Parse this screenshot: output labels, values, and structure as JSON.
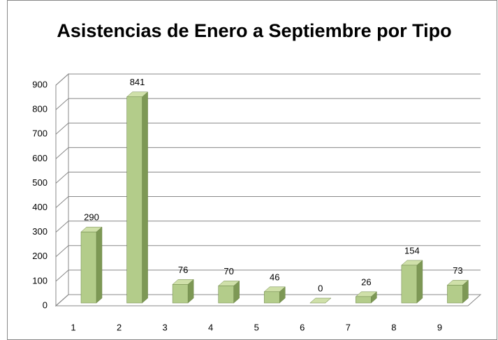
{
  "chart_data": {
    "type": "bar",
    "title": "Asistencias  de Enero a Septiembre  por Tipo",
    "categories": [
      "1",
      "2",
      "3",
      "4",
      "5",
      "6",
      "7",
      "8",
      "9"
    ],
    "values": [
      290,
      841,
      76,
      70,
      46,
      0,
      26,
      154,
      73
    ],
    "color": "#b3cc8a",
    "ylim": [
      0,
      900
    ],
    "yticks": [
      0,
      100,
      200,
      300,
      400,
      500,
      600,
      700,
      800,
      900
    ],
    "grid": true
  }
}
